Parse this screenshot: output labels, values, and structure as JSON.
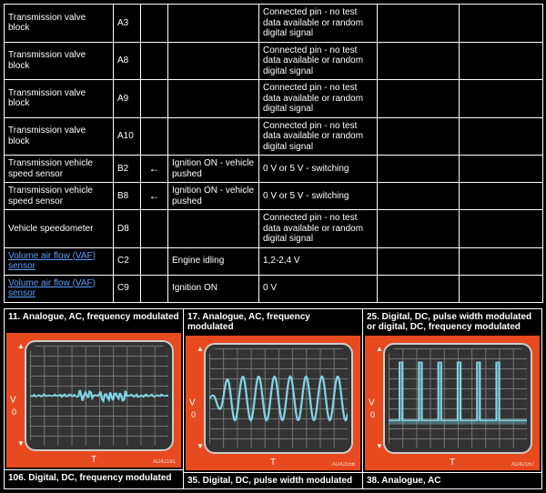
{
  "table": {
    "rows": [
      {
        "c0": "Transmission valve block",
        "c1": "A3",
        "c2": "",
        "c3": "",
        "c4": "Connected pin - no test data available or random digital signal",
        "c5": "",
        "c6": "",
        "link": false
      },
      {
        "c0": "Transmission valve block",
        "c1": "A8",
        "c2": "",
        "c3": "",
        "c4": "Connected pin - no test data available or random digital signal",
        "c5": "",
        "c6": "",
        "link": false
      },
      {
        "c0": "Transmission valve block",
        "c1": "A9",
        "c2": "",
        "c3": "",
        "c4": "Connected pin - no test data available or random digital signal",
        "c5": "",
        "c6": "",
        "link": false
      },
      {
        "c0": "Transmission valve block",
        "c1": "A10",
        "c2": "",
        "c3": "",
        "c4": "Connected pin - no test data available or random digital signal",
        "c5": "",
        "c6": "",
        "link": false
      },
      {
        "c0": "Transmission vehicle speed sensor",
        "c1": "B2",
        "c2": "←",
        "c3": "Ignition ON - vehicle pushed",
        "c4": "0 V or 5 V - switching",
        "c5": "",
        "c6": "",
        "link": false
      },
      {
        "c0": "Transmission vehicle speed sensor",
        "c1": "B8",
        "c2": "←",
        "c3": "Ignition ON - vehicle pushed",
        "c4": "0 V or 5 V - switching",
        "c5": "",
        "c6": "",
        "link": false
      },
      {
        "c0": "Vehicle speedometer",
        "c1": "D8",
        "c2": "",
        "c3": "",
        "c4": "Connected pin - no test data available or random digital signal",
        "c5": "",
        "c6": "",
        "link": false
      },
      {
        "c0": "Volume air flow (VAF) sensor",
        "c1": "C2",
        "c2": "",
        "c3": "Engine idling",
        "c4": "1,2-2,4 V",
        "c5": "",
        "c6": "",
        "link": true
      },
      {
        "c0": "Volume air flow (VAF) sensor",
        "c1": "C9",
        "c2": "",
        "c3": "Ignition ON",
        "c4": "0 V",
        "c5": "",
        "c6": "",
        "link": true
      }
    ]
  },
  "scopes": {
    "ylabel": "V",
    "yzero": "0",
    "xlabel": "T",
    "arrow_up": "▲",
    "arrow_down": "▼",
    "items": [
      {
        "title": "11. Analogue, AC, frequency modulated",
        "caption": "106. Digital, DC, frequency modulated",
        "imgid": "AD42161",
        "wave": "noise"
      },
      {
        "title": "17. Analogue, AC, frequency modulated",
        "caption": "35. Digital, DC, pulse width modulated",
        "imgid": "AD42156",
        "wave": "sine"
      },
      {
        "title": "25. Digital, DC, pulse width modulated or digital, DC, frequency modulated",
        "caption": "38. Analogue, AC",
        "imgid": "AD42167",
        "wave": "pulse"
      }
    ],
    "colors": {
      "frame_bg": "#e84a1f",
      "screen_bg": "#333333",
      "screen_border": "#cccccc",
      "grid": "#777777",
      "trace": "#7fd4e6"
    }
  }
}
